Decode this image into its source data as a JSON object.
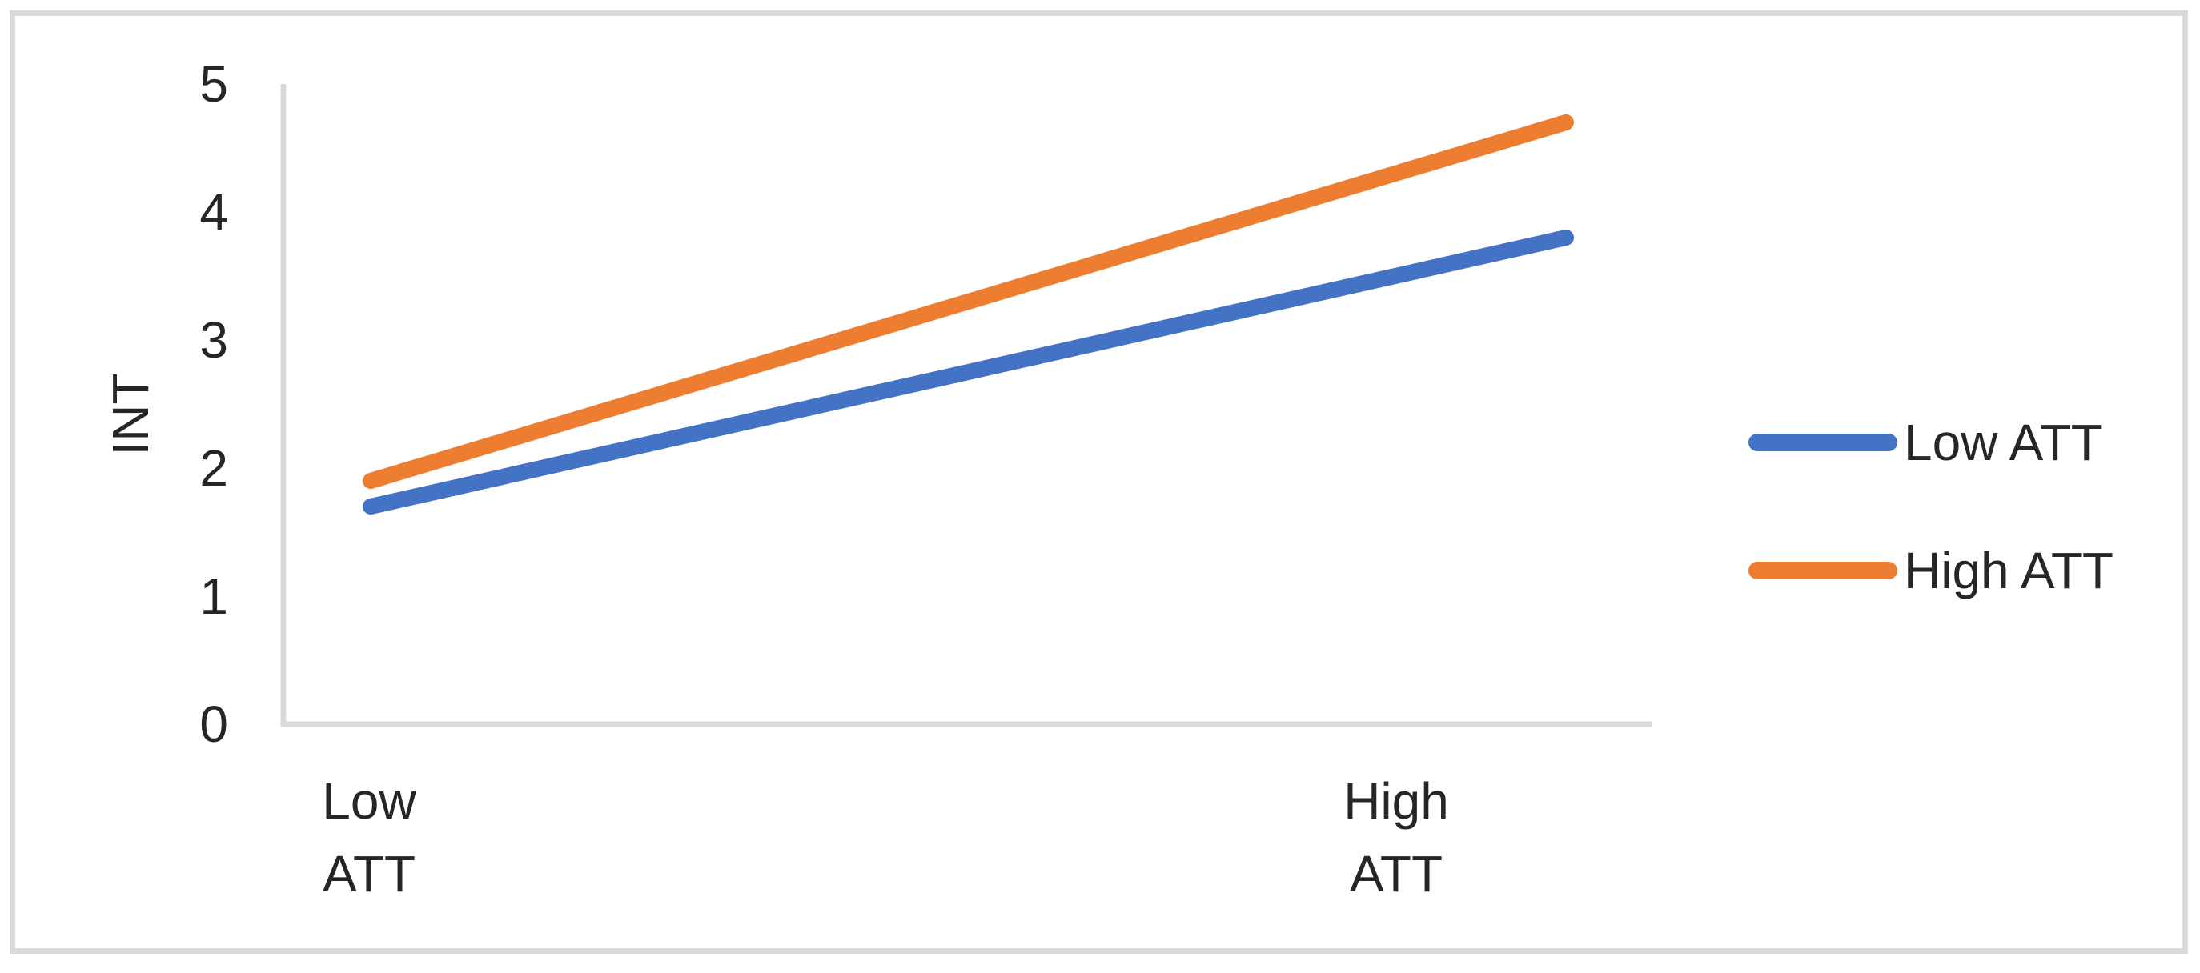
{
  "chart_data": {
    "type": "line",
    "title": "",
    "xlabel": "",
    "ylabel": "INT",
    "categories": [
      {
        "line1": "Low",
        "line2": "ATT"
      },
      {
        "line1": "High",
        "line2": "ATT"
      }
    ],
    "series": [
      {
        "name": "Low ATT",
        "values": [
          1.7,
          3.8
        ],
        "color": "#4472C4"
      },
      {
        "name": "High ATT",
        "values": [
          1.9,
          4.7
        ],
        "color": "#ED7D31"
      }
    ],
    "ylim": [
      0,
      5
    ],
    "yticks": [
      "0",
      "1",
      "2",
      "3",
      "4",
      "5"
    ],
    "grid": false,
    "legend_position": "right"
  },
  "legend": {
    "items": [
      {
        "label": "Low ATT",
        "color": "#4472C4"
      },
      {
        "label": "High ATT",
        "color": "#ED7D31"
      }
    ]
  },
  "colors": {
    "axis_line": "#D9D9D9",
    "frame_border": "#D9D9D9",
    "text": "#262626",
    "series_blue": "#4472C4",
    "series_orange": "#ED7D31"
  }
}
